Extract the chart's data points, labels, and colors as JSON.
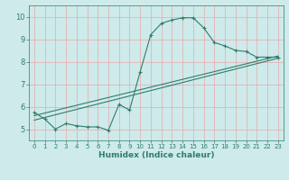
{
  "title": "",
  "xlabel": "Humidex (Indice chaleur)",
  "xlim": [
    -0.5,
    23.5
  ],
  "ylim": [
    4.5,
    10.5
  ],
  "xticks": [
    0,
    1,
    2,
    3,
    4,
    5,
    6,
    7,
    8,
    9,
    10,
    11,
    12,
    13,
    14,
    15,
    16,
    17,
    18,
    19,
    20,
    21,
    22,
    23
  ],
  "yticks": [
    5,
    6,
    7,
    8,
    9,
    10
  ],
  "color": "#2e7d6e",
  "bg_color": "#ceeaea",
  "grid_color": "#e8a8a8",
  "line1_x": [
    0,
    1,
    2,
    3,
    4,
    5,
    6,
    7,
    8,
    9,
    10,
    11,
    12,
    13,
    14,
    15,
    16,
    17,
    18,
    19,
    20,
    21,
    22,
    23
  ],
  "line1_y": [
    5.75,
    5.45,
    5.0,
    5.25,
    5.15,
    5.1,
    5.1,
    4.95,
    6.1,
    5.85,
    7.55,
    9.2,
    9.7,
    9.85,
    9.95,
    9.95,
    9.5,
    8.85,
    8.7,
    8.5,
    8.45,
    8.2,
    8.2,
    8.2
  ],
  "line2_x": [
    0,
    23
  ],
  "line2_y": [
    5.4,
    8.15
  ],
  "line3_x": [
    0,
    23
  ],
  "line3_y": [
    5.6,
    8.25
  ]
}
